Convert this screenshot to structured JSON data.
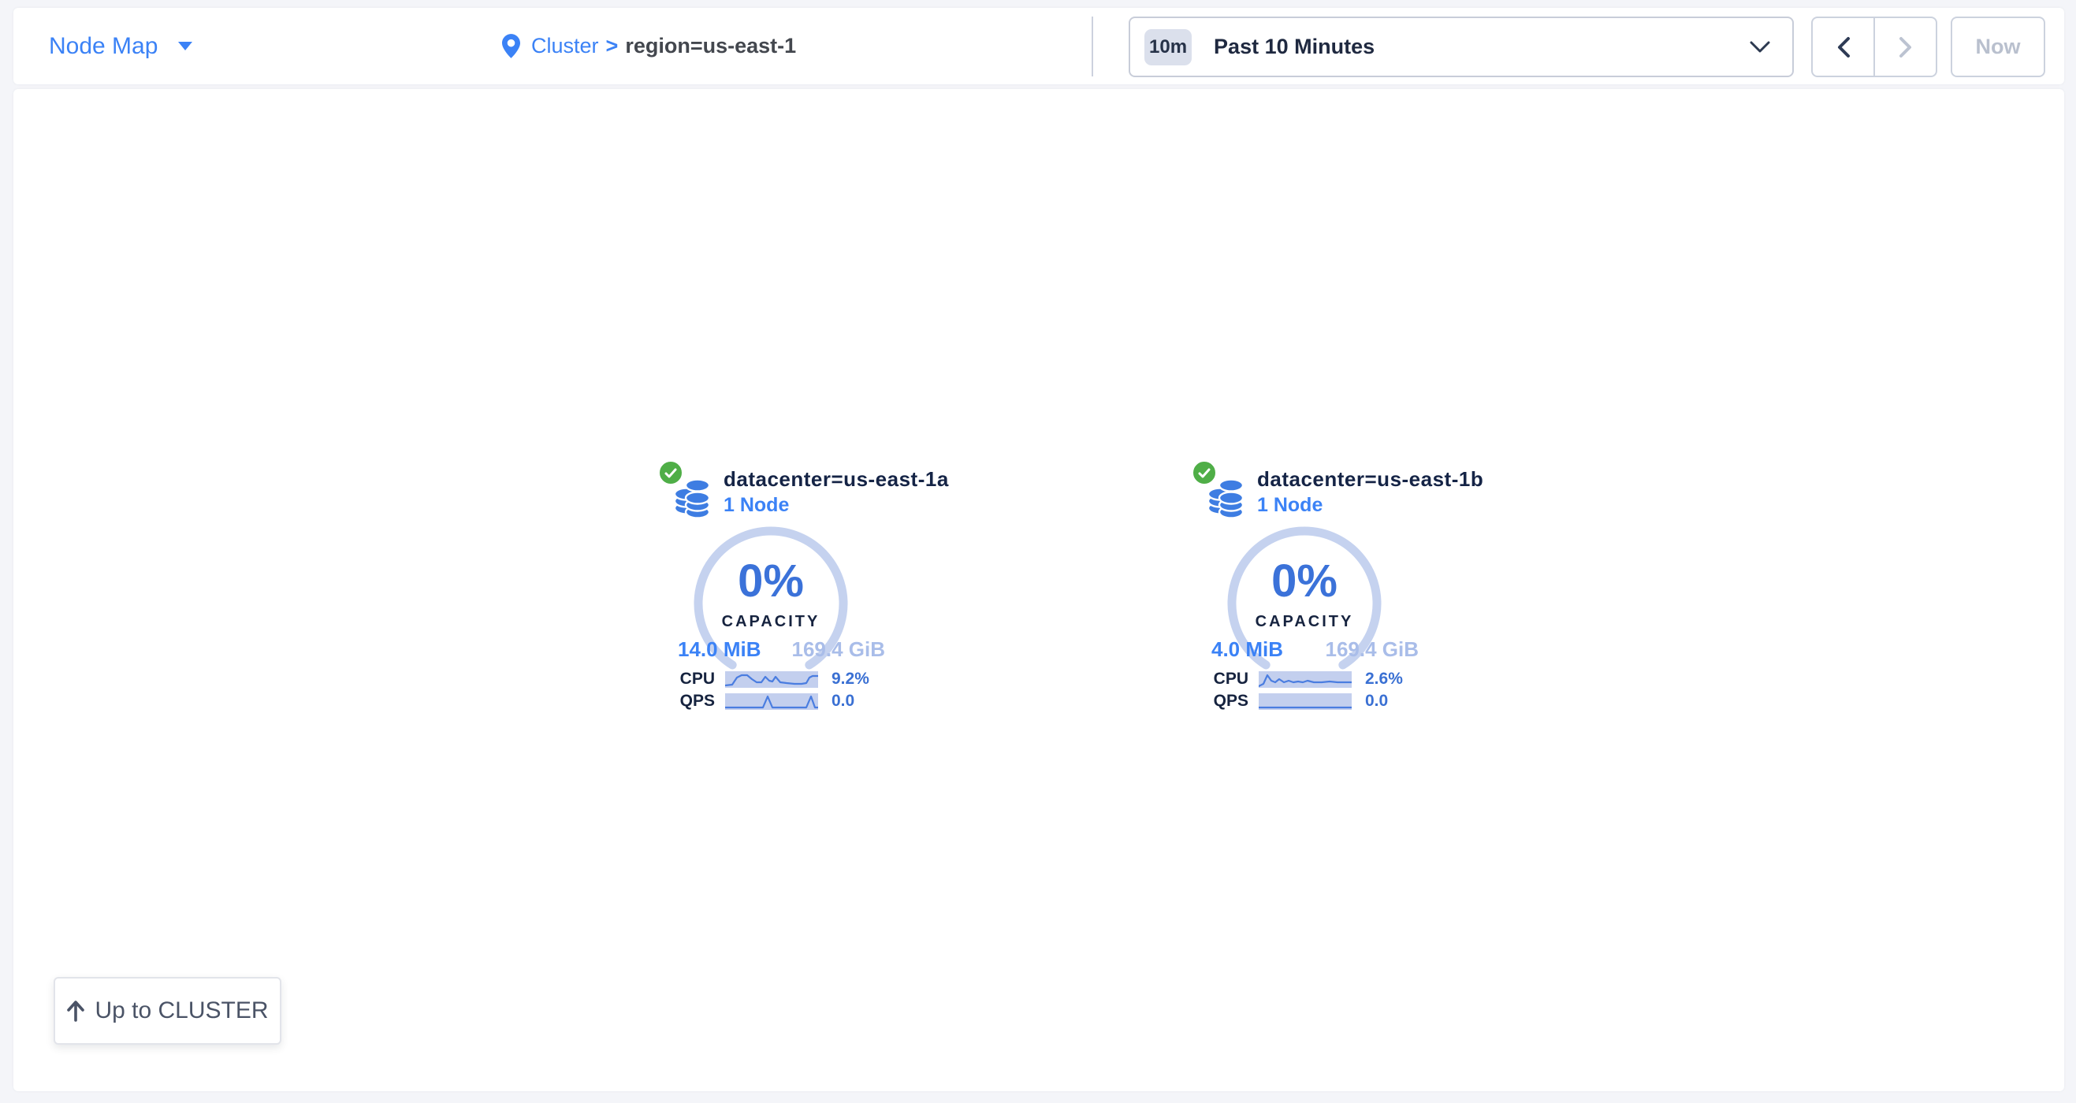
{
  "header": {
    "view_selector": {
      "label": "Node Map"
    },
    "breadcrumb": {
      "root": "Cluster",
      "separator": ">",
      "current": "region=us-east-1"
    },
    "time_window": {
      "badge": "10m",
      "label": "Past 10 Minutes"
    },
    "nav": {
      "now_label": "Now"
    }
  },
  "localities": [
    {
      "status": "healthy",
      "name": "datacenter=us-east-1a",
      "nodes_label": "1 Node",
      "capacity_percent": "0%",
      "capacity_caption": "CAPACITY",
      "capacity_used": "14.0 MiB",
      "capacity_total": "169.4 GiB",
      "cpu_label": "CPU",
      "cpu_value": "9.2%",
      "cpu_points": [
        [
          0,
          18
        ],
        [
          9,
          17
        ],
        [
          15,
          8
        ],
        [
          21,
          5
        ],
        [
          28,
          5
        ],
        [
          34,
          10
        ],
        [
          40,
          14
        ],
        [
          46,
          14
        ],
        [
          51,
          7
        ],
        [
          56,
          12
        ],
        [
          60,
          13
        ],
        [
          64,
          7
        ],
        [
          70,
          14
        ],
        [
          78,
          15
        ],
        [
          88,
          16
        ],
        [
          97,
          16
        ],
        [
          103,
          15
        ],
        [
          107,
          8
        ],
        [
          111,
          6
        ],
        [
          118,
          6
        ]
      ],
      "qps_label": "QPS",
      "qps_value": "0.0",
      "qps_points": [
        [
          0,
          18
        ],
        [
          48,
          18
        ],
        [
          54,
          4
        ],
        [
          60,
          18
        ],
        [
          103,
          18
        ],
        [
          109,
          4
        ],
        [
          114,
          18
        ],
        [
          118,
          18
        ]
      ]
    },
    {
      "status": "healthy",
      "name": "datacenter=us-east-1b",
      "nodes_label": "1 Node",
      "capacity_percent": "0%",
      "capacity_caption": "CAPACITY",
      "capacity_used": "4.0 MiB",
      "capacity_total": "169.4 GiB",
      "cpu_label": "CPU",
      "cpu_value": "2.6%",
      "cpu_points": [
        [
          0,
          19
        ],
        [
          6,
          16
        ],
        [
          11,
          5
        ],
        [
          16,
          12
        ],
        [
          21,
          14
        ],
        [
          26,
          10
        ],
        [
          32,
          14
        ],
        [
          38,
          12
        ],
        [
          44,
          14
        ],
        [
          50,
          13
        ],
        [
          56,
          14
        ],
        [
          62,
          12
        ],
        [
          70,
          14
        ],
        [
          80,
          14
        ],
        [
          90,
          13
        ],
        [
          100,
          14
        ],
        [
          110,
          14
        ],
        [
          118,
          14
        ]
      ],
      "qps_label": "QPS",
      "qps_value": "0.0",
      "qps_points": [
        [
          0,
          18
        ],
        [
          118,
          18
        ]
      ]
    }
  ],
  "footer": {
    "up_label": "Up to CLUSTER"
  },
  "colors": {
    "accent_blue": "#3b82f6",
    "value_blue": "#3a70d3",
    "light_blue": "#a9bde9",
    "gauge_arc": "#c5d2ef",
    "spark_bg": "#c3cfee",
    "spark_line": "#4a7de0",
    "healthy_green": "#4fae47",
    "navy_text": "#152446",
    "page_bg": "#f4f5f9",
    "muted_disabled": "#b9c0ce"
  }
}
